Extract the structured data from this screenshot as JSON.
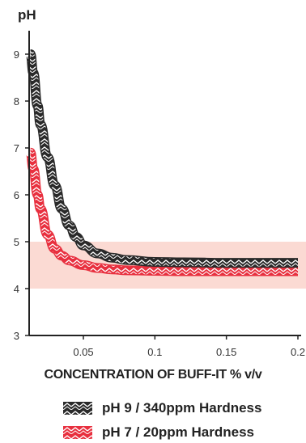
{
  "chart_data": {
    "type": "line",
    "ylabel": "pH",
    "xlabel": "CONCENTRATION OF BUFF-IT % v/v",
    "xlim": [
      0.012,
      0.205
    ],
    "ylim": [
      3,
      9.5
    ],
    "xticks": [
      "0.05",
      "0.1",
      "0.15",
      "0.2"
    ],
    "xtick_values": [
      0.05,
      0.1,
      0.15,
      0.2
    ],
    "yticks": [
      "3",
      "4",
      "5",
      "6",
      "7",
      "8",
      "9"
    ],
    "ytick_values": [
      3,
      4,
      5,
      6,
      7,
      8,
      9
    ],
    "band": {
      "from": 4,
      "to": 5,
      "color": "#fbdad3"
    },
    "grid": false,
    "legend_position": "bottom",
    "series": [
      {
        "name": "pH 9 / 340ppm Hardness",
        "color": "#2a2a2a",
        "pattern": "chevron",
        "x": [
          0.013,
          0.015,
          0.018,
          0.02,
          0.025,
          0.03,
          0.035,
          0.04,
          0.045,
          0.05,
          0.06,
          0.07,
          0.08,
          0.1,
          0.12,
          0.15,
          0.2
        ],
        "y": [
          9.0,
          8.6,
          7.9,
          7.5,
          6.8,
          6.2,
          5.7,
          5.35,
          5.1,
          4.92,
          4.75,
          4.66,
          4.61,
          4.57,
          4.56,
          4.55,
          4.55
        ]
      },
      {
        "name": "pH 7 / 20ppm Hardness",
        "color": "#e8303f",
        "pattern": "chevron",
        "x": [
          0.013,
          0.015,
          0.018,
          0.02,
          0.025,
          0.03,
          0.035,
          0.04,
          0.05,
          0.06,
          0.07,
          0.08,
          0.1,
          0.12,
          0.15,
          0.2
        ],
        "y": [
          6.9,
          6.55,
          6.0,
          5.7,
          5.15,
          4.85,
          4.7,
          4.6,
          4.5,
          4.44,
          4.41,
          4.39,
          4.38,
          4.37,
          4.37,
          4.37
        ]
      }
    ]
  }
}
